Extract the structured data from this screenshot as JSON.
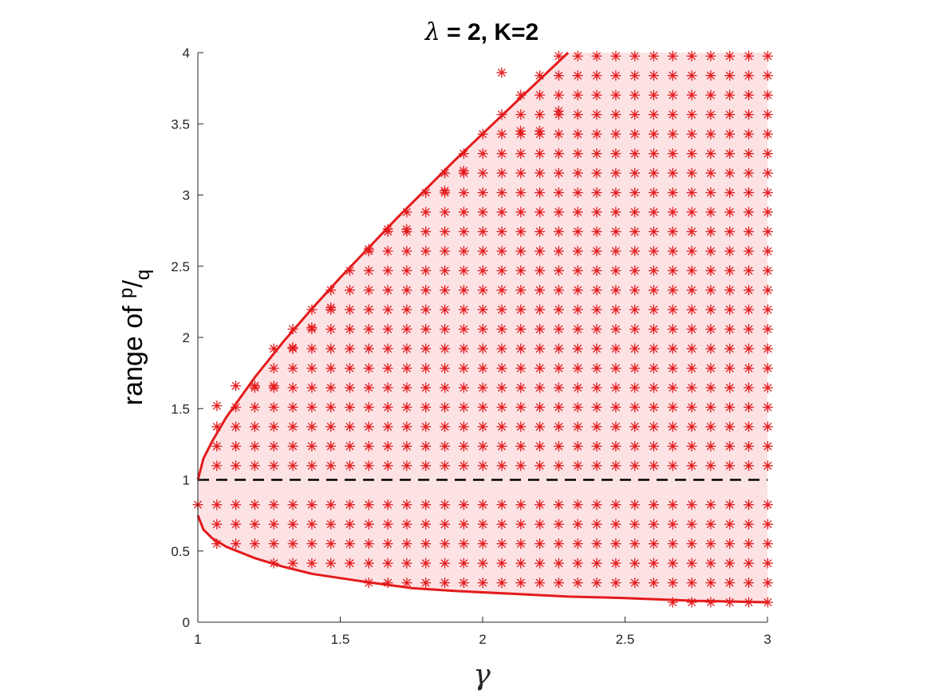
{
  "chart_data": {
    "type": "scatter",
    "title": "λ = 2, K=2",
    "title_parts": {
      "lambda": "λ",
      "rest": " = 2, K=2"
    },
    "xlabel": "γ",
    "ylabel": {
      "prefix": "range of ",
      "numerator": "p",
      "slash": "/",
      "denominator": "q"
    },
    "xlim": [
      1,
      3
    ],
    "ylim": [
      0,
      4
    ],
    "x_ticks": [
      1,
      1.5,
      2,
      2.5,
      3
    ],
    "x_tick_labels": [
      "1",
      "1.5",
      "2",
      "2.5",
      "3"
    ],
    "y_ticks": [
      0,
      0.5,
      1,
      1.5,
      2,
      2.5,
      3,
      3.5,
      4
    ],
    "y_tick_labels": [
      "0",
      "0.5",
      "1",
      "1.5",
      "2",
      "2.5",
      "3",
      "3.5",
      "4"
    ],
    "grid": false,
    "reference_line": {
      "y": 1,
      "style": "dashed",
      "color": "#000000"
    },
    "colors": {
      "boundary": "#e41a1c",
      "fill": "#fde2e4",
      "marker": "#e41a1c",
      "axis": "#262626"
    },
    "boundary_upper": [
      [
        1,
        1
      ],
      [
        1.02,
        1.15
      ],
      [
        1.05,
        1.27
      ],
      [
        1.1,
        1.44
      ],
      [
        1.2,
        1.72
      ],
      [
        1.3,
        1.97
      ],
      [
        1.4,
        2.2
      ],
      [
        1.5,
        2.42
      ],
      [
        1.6,
        2.63
      ],
      [
        1.7,
        2.84
      ],
      [
        1.8,
        3.04
      ],
      [
        1.9,
        3.24
      ],
      [
        2.0,
        3.43
      ],
      [
        2.1,
        3.62
      ],
      [
        2.2,
        3.81
      ],
      [
        2.3,
        4.0
      ]
    ],
    "boundary_lower": [
      [
        1,
        0.75
      ],
      [
        1.02,
        0.65
      ],
      [
        1.05,
        0.59
      ],
      [
        1.1,
        0.53
      ],
      [
        1.2,
        0.45
      ],
      [
        1.3,
        0.39
      ],
      [
        1.4,
        0.34
      ],
      [
        1.5,
        0.31
      ],
      [
        1.6,
        0.28
      ],
      [
        1.75,
        0.24
      ],
      [
        1.9,
        0.22
      ],
      [
        2.1,
        0.2
      ],
      [
        2.3,
        0.18
      ],
      [
        2.5,
        0.17
      ],
      [
        2.75,
        0.15
      ],
      [
        3.0,
        0.14
      ]
    ],
    "marker_grid": {
      "gamma_min": 1,
      "gamma_step": 0.0667,
      "gamma_count": 31,
      "ratio_min": 0.14,
      "ratio_step": 0.137,
      "ratio_count": 29
    },
    "marker_extras": [
      [
        1.067,
        1.52
      ],
      [
        1.133,
        1.66
      ],
      [
        1.2,
        1.66
      ],
      [
        1.267,
        1.66
      ],
      [
        1.333,
        1.93
      ],
      [
        1.4,
        2.07
      ],
      [
        1.467,
        2.21
      ],
      [
        1.6,
        2.62
      ],
      [
        1.667,
        2.76
      ],
      [
        1.733,
        2.76
      ],
      [
        1.867,
        3.03
      ],
      [
        1.933,
        3.17
      ],
      [
        2.067,
        3.86
      ],
      [
        2.133,
        3.45
      ],
      [
        2.2,
        3.45
      ],
      [
        2.267,
        3.59
      ]
    ],
    "marker_symbol": "*"
  }
}
